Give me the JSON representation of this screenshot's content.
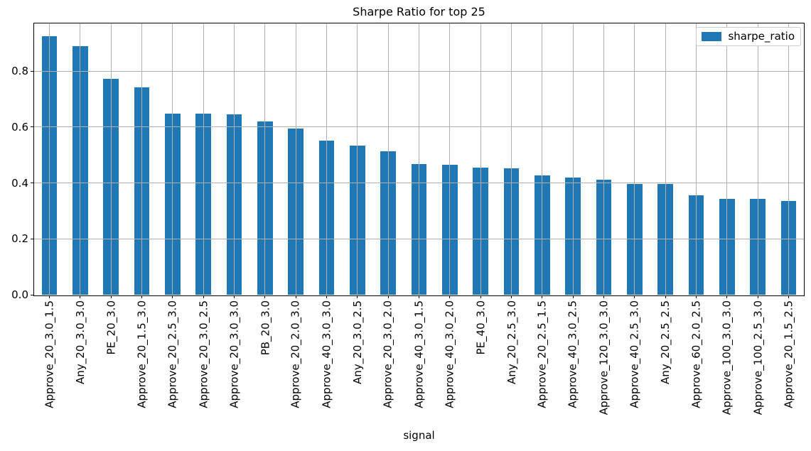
{
  "figure": {
    "background": "#ffffff",
    "bar_color": "#1f77b4",
    "grid_color": "#b0b0b0",
    "axis_color": "#000000"
  },
  "chart_data": {
    "type": "bar",
    "title": "Sharpe Ratio for top 25",
    "xlabel": "signal",
    "ylabel": "",
    "grid": true,
    "grid_above_bars": true,
    "legend": {
      "label": "sharpe_ratio",
      "position": "upper right"
    },
    "x_tick_rotation": 90,
    "bar_width_fraction": 0.5,
    "ylim": [
      0,
      0.971
    ],
    "yticks": [
      0.0,
      0.2,
      0.4,
      0.6,
      0.8
    ],
    "categories": [
      "Approve_20_3.0_1.5",
      "Any_20_3.0_3.0",
      "PE_20_3.0",
      "Approve_20_1.5_3.0",
      "Approve_20_2.5_3.0",
      "Approve_20_3.0_2.5",
      "Approve_20_3.0_3.0",
      "PB_20_3.0",
      "Approve_20_2.0_3.0",
      "Approve_40_3.0_3.0",
      "Any_20_3.0_2.5",
      "Approve_20_3.0_2.0",
      "Approve_40_3.0_1.5",
      "Approve_40_3.0_2.0",
      "PE_40_3.0",
      "Any_20_2.5_3.0",
      "Approve_20_2.5_1.5",
      "Approve_40_3.0_2.5",
      "Approve_120_3.0_3.0",
      "Approve_40_2.5_3.0",
      "Any_20_2.5_2.5",
      "Approve_60_2.0_2.5",
      "Approve_100_3.0_3.0",
      "Approve_100_2.5_3.0",
      "Approve_20_1.5_2.5"
    ],
    "values": [
      0.925,
      0.89,
      0.772,
      0.742,
      0.647,
      0.647,
      0.646,
      0.62,
      0.595,
      0.551,
      0.533,
      0.513,
      0.468,
      0.466,
      0.455,
      0.452,
      0.426,
      0.419,
      0.411,
      0.397,
      0.396,
      0.356,
      0.342,
      0.342,
      0.336
    ]
  }
}
